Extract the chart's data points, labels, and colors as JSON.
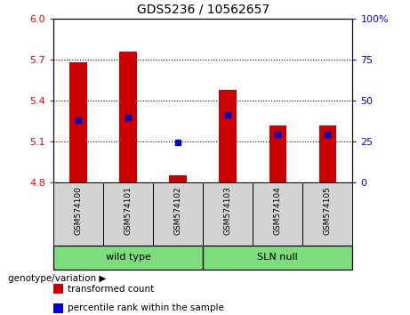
{
  "title": "GDS5236 / 10562657",
  "samples": [
    "GSM574100",
    "GSM574101",
    "GSM574102",
    "GSM574103",
    "GSM574104",
    "GSM574105"
  ],
  "transformed_counts": [
    5.68,
    5.76,
    4.855,
    5.48,
    5.22,
    5.22
  ],
  "percentile_ranks": [
    5.26,
    5.28,
    5.095,
    5.295,
    5.155,
    5.155
  ],
  "ylim": [
    4.8,
    6.0
  ],
  "yticks_left": [
    4.8,
    5.1,
    5.4,
    5.7,
    6.0
  ],
  "right_yticks_pct": [
    0,
    25,
    50,
    75,
    100
  ],
  "right_ytick_labels": [
    "0",
    "25",
    "50",
    "75",
    "100%"
  ],
  "bar_color": "#cc0000",
  "dot_color": "#0000cc",
  "groups": [
    {
      "label": "wild type",
      "start": 0,
      "end": 2
    },
    {
      "label": "SLN null",
      "start": 3,
      "end": 5
    }
  ],
  "group_color": "#7ddd7d",
  "sample_box_color": "#d3d3d3",
  "group_label": "genotype/variation",
  "legend_items": [
    {
      "label": "transformed count",
      "color": "#cc0000"
    },
    {
      "label": "percentile rank within the sample",
      "color": "#0000cc"
    }
  ],
  "bar_width": 0.35,
  "base_value": 4.8
}
